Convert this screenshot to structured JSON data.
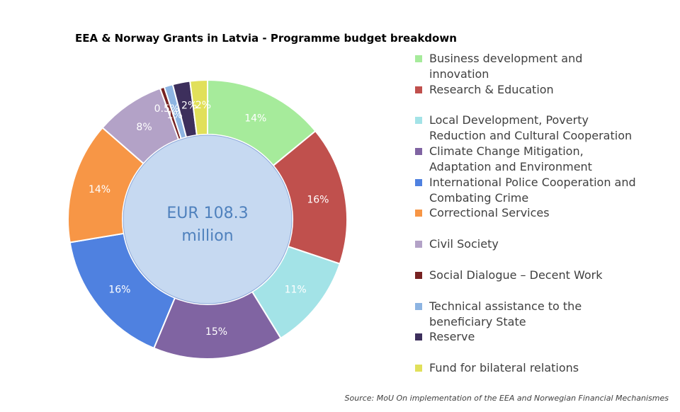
{
  "chart_data": {
    "type": "pie",
    "title": "EEA & Norway Grants in Latvia - Programme budget breakdown",
    "center_label": [
      "EUR 108.3",
      "million"
    ],
    "legend_position": "right",
    "slices": [
      {
        "name": "Business development and innovation",
        "value": 14,
        "label": "14%",
        "color": "#a6eb9b"
      },
      {
        "name": "Research & Education",
        "value": 16,
        "label": "16%",
        "color": "#c0504d"
      },
      {
        "name": "Local Development, Poverty Reduction and Cultural Cooperation",
        "value": 11,
        "label": "11%",
        "color": "#a3e3e7"
      },
      {
        "name": "Climate Change Mitigation, Adaptation and Environment",
        "value": 15,
        "label": "15%",
        "color": "#8064a2"
      },
      {
        "name": "International Police Cooperation and Combating Crime",
        "value": 16,
        "label": "16%",
        "color": "#4f81e0"
      },
      {
        "name": "Correctional Services",
        "value": 14,
        "label": "14%",
        "color": "#f79646"
      },
      {
        "name": "Civil Society",
        "value": 8,
        "label": "8%",
        "color": "#b3a2c7"
      },
      {
        "name": "Social Dialogue – Decent Work",
        "value": 0.5,
        "label": "0.5%",
        "color": "#772222"
      },
      {
        "name": "Technical assistance to the beneficiary State",
        "value": 1,
        "label": "1%",
        "color": "#8db4e2"
      },
      {
        "name": "Reserve",
        "value": 2,
        "label": "2%",
        "color": "#3d2f5c"
      },
      {
        "name": "Fund for bilateral relations",
        "value": 2,
        "label": "2%",
        "color": "#e1e05a"
      }
    ]
  },
  "source": "Source: MoU On implementation of the EEA and Norwegian Financial Mechanismes"
}
